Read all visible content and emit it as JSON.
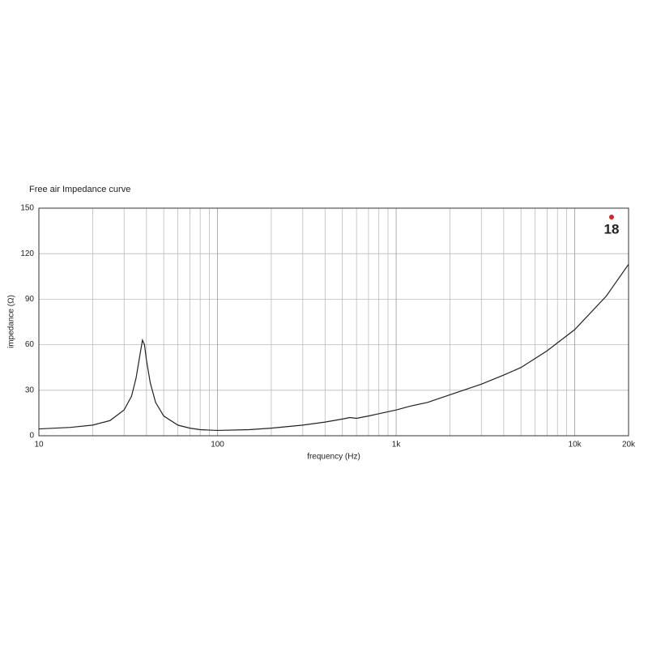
{
  "chart_data": {
    "type": "line",
    "title": "Free air Impedance curve",
    "x_label": "frequency (Hz)",
    "y_label": "impedance (Ω)",
    "logo": "18",
    "x_scale": "log",
    "xlim": [
      10,
      20000
    ],
    "ylim": [
      0,
      150
    ],
    "xticks": [
      10,
      {
        "value": 100,
        "label": "100"
      },
      {
        "value": 1000,
        "label": "1k"
      },
      {
        "value": 10000,
        "label": "10k"
      },
      {
        "value": 20000,
        "label": "20k"
      }
    ],
    "yticks": [
      0,
      30,
      60,
      90,
      120,
      150
    ],
    "x_minor_grid": [
      20,
      30,
      40,
      50,
      60,
      70,
      80,
      90,
      200,
      300,
      400,
      500,
      600,
      700,
      800,
      900,
      2000,
      3000,
      4000,
      5000,
      6000,
      7000,
      8000,
      9000
    ],
    "grid": true,
    "series": [
      {
        "name": "impedance",
        "color": "#222222",
        "x": [
          10,
          15,
          20,
          25,
          30,
          33,
          35,
          37,
          38,
          39,
          40,
          42,
          45,
          50,
          60,
          70,
          80,
          100,
          150,
          200,
          300,
          400,
          500,
          550,
          600,
          700,
          800,
          1000,
          1200,
          1500,
          2000,
          3000,
          4000,
          5000,
          7000,
          10000,
          15000,
          20000
        ],
        "values": [
          4.5,
          5.5,
          7,
          10,
          17,
          26,
          38,
          55,
          63,
          60,
          50,
          35,
          22,
          13,
          7,
          5,
          4,
          3.5,
          4,
          5,
          7,
          9,
          11,
          12,
          11.5,
          13,
          14.5,
          17,
          19.5,
          22,
          27,
          34,
          40,
          45,
          56,
          70,
          92,
          113
        ]
      }
    ]
  }
}
